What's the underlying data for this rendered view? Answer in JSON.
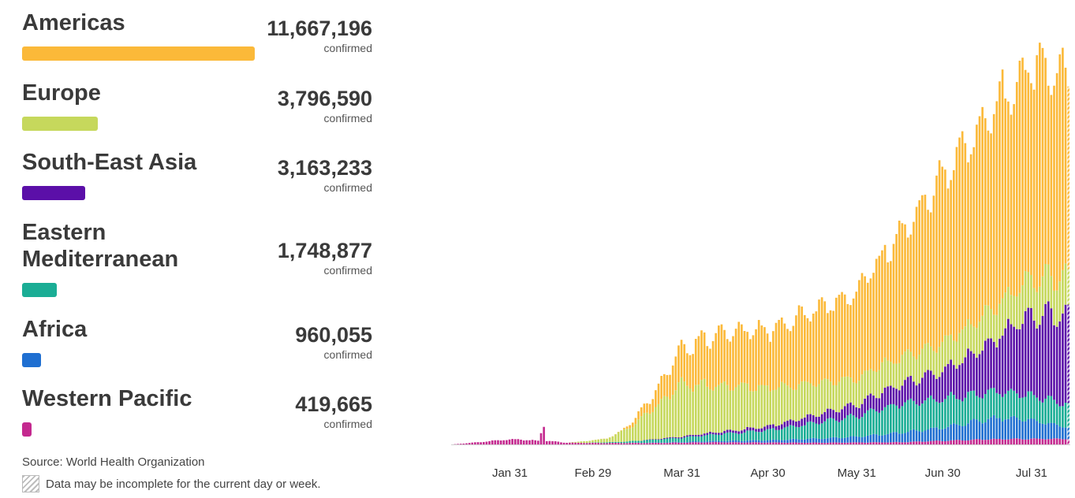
{
  "legend": {
    "regions": [
      {
        "name": "Americas",
        "value": "11,667,196",
        "unit": "confirmed",
        "color": "#fbb939",
        "share": 1.0
      },
      {
        "name": "Europe",
        "value": "3,796,590",
        "unit": "confirmed",
        "color": "#c6d85c",
        "share": 0.325
      },
      {
        "name": "South-East Asia",
        "value": "3,163,233",
        "unit": "confirmed",
        "color": "#5b0fa8",
        "share": 0.271
      },
      {
        "name": "Eastern\nMediterranean",
        "value": "1,748,877",
        "unit": "confirmed",
        "color": "#1aad95",
        "share": 0.15
      },
      {
        "name": "Africa",
        "value": "960,055",
        "unit": "confirmed",
        "color": "#1f6fd1",
        "share": 0.082
      },
      {
        "name": "Western Pacific",
        "value": "419,665",
        "unit": "confirmed",
        "color": "#c4298f",
        "share": 0.036
      }
    ]
  },
  "footer": {
    "source": "Source:  World Health Organization",
    "note": "Data may be incomplete for the current day or week."
  },
  "chart_data": {
    "type": "bar",
    "stacked": true,
    "x_start": "2020-01-11",
    "x_end": "2020-08-13",
    "x_ticks": [
      "Jan 31",
      "Feb 29",
      "Mar 31",
      "Apr 30",
      "May 31",
      "Jun 30",
      "Jul 31"
    ],
    "ylim": [
      0,
      300000
    ],
    "grid": false,
    "series": [
      {
        "name": "Western Pacific",
        "color": "#c4298f",
        "knots": [
          [
            "2020-01-11",
            0
          ],
          [
            "2020-01-20",
            1500
          ],
          [
            "2020-01-28",
            3000
          ],
          [
            "2020-02-03",
            3500
          ],
          [
            "2020-02-10",
            2500
          ],
          [
            "2020-02-12",
            14000
          ],
          [
            "2020-02-13",
            2500
          ],
          [
            "2020-02-20",
            1200
          ],
          [
            "2020-03-01",
            1000
          ],
          [
            "2020-03-20",
            1000
          ],
          [
            "2020-04-10",
            1500
          ],
          [
            "2020-05-15",
            1200
          ],
          [
            "2020-06-15",
            1500
          ],
          [
            "2020-07-15",
            3500
          ],
          [
            "2020-08-13",
            4000
          ]
        ]
      },
      {
        "name": "Africa",
        "color": "#1f6fd1",
        "knots": [
          [
            "2020-01-11",
            0
          ],
          [
            "2020-03-10",
            0
          ],
          [
            "2020-03-31",
            400
          ],
          [
            "2020-04-30",
            1500
          ],
          [
            "2020-05-31",
            4000
          ],
          [
            "2020-06-30",
            9000
          ],
          [
            "2020-07-20",
            15000
          ],
          [
            "2020-07-31",
            13000
          ],
          [
            "2020-08-13",
            8000
          ]
        ]
      },
      {
        "name": "Eastern Mediterranean",
        "color": "#1aad95",
        "knots": [
          [
            "2020-01-11",
            0
          ],
          [
            "2020-02-25",
            0
          ],
          [
            "2020-03-10",
            800
          ],
          [
            "2020-03-31",
            3000
          ],
          [
            "2020-04-30",
            7000
          ],
          [
            "2020-05-31",
            14000
          ],
          [
            "2020-06-15",
            20000
          ],
          [
            "2020-06-30",
            20000
          ],
          [
            "2020-07-31",
            17000
          ],
          [
            "2020-08-13",
            16000
          ]
        ]
      },
      {
        "name": "South-East Asia",
        "color": "#5b0fa8",
        "knots": [
          [
            "2020-01-11",
            0
          ],
          [
            "2020-03-15",
            0
          ],
          [
            "2020-03-31",
            800
          ],
          [
            "2020-04-30",
            2500
          ],
          [
            "2020-05-31",
            8000
          ],
          [
            "2020-06-30",
            19000
          ],
          [
            "2020-07-15",
            32000
          ],
          [
            "2020-07-31",
            55000
          ],
          [
            "2020-08-13",
            63000
          ]
        ]
      },
      {
        "name": "Europe",
        "color": "#c6d85c",
        "knots": [
          [
            "2020-01-11",
            0
          ],
          [
            "2020-02-20",
            0
          ],
          [
            "2020-03-05",
            2500
          ],
          [
            "2020-03-15",
            12000
          ],
          [
            "2020-03-31",
            36000
          ],
          [
            "2020-04-10",
            33000
          ],
          [
            "2020-04-30",
            27000
          ],
          [
            "2020-05-31",
            18000
          ],
          [
            "2020-06-30",
            19000
          ],
          [
            "2020-07-31",
            25000
          ],
          [
            "2020-08-13",
            26000
          ]
        ]
      },
      {
        "name": "Americas",
        "color": "#fbb939",
        "knots": [
          [
            "2020-01-11",
            0
          ],
          [
            "2020-02-25",
            0
          ],
          [
            "2020-03-10",
            200
          ],
          [
            "2020-03-20",
            8000
          ],
          [
            "2020-03-31",
            25000
          ],
          [
            "2020-04-15",
            37000
          ],
          [
            "2020-04-30",
            40000
          ],
          [
            "2020-05-31",
            60000
          ],
          [
            "2020-06-15",
            85000
          ],
          [
            "2020-06-30",
            115000
          ],
          [
            "2020-07-15",
            135000
          ],
          [
            "2020-07-31",
            150000
          ],
          [
            "2020-08-13",
            140000
          ]
        ]
      }
    ]
  }
}
